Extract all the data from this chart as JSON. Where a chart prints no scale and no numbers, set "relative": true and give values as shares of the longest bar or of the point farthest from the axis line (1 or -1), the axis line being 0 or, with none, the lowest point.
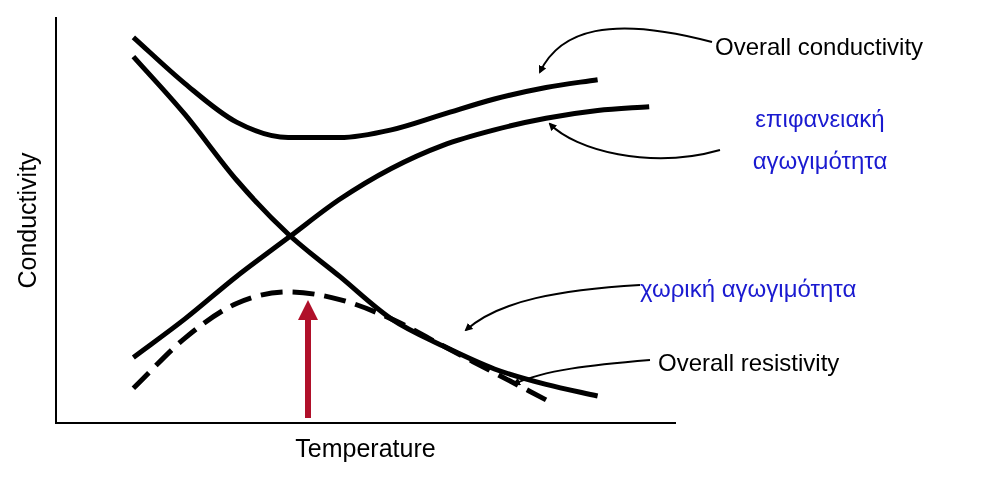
{
  "chart_data": {
    "type": "line",
    "relative": true,
    "xlabel": "Temperature",
    "ylabel": "Conductivity",
    "categories": [
      null,
      null,
      null,
      null,
      null,
      null,
      null,
      null,
      null,
      null,
      null,
      null
    ],
    "series": [
      {
        "name": "Overall conductivity",
        "color": "#000000",
        "line_style": "solid",
        "values": [
          null,
          1.0,
          0.88,
          0.78,
          0.74,
          0.74,
          0.76,
          0.8,
          0.84,
          0.87,
          0.89,
          null
        ]
      },
      {
        "name": "επιφανειακή αγωγιμότητα",
        "color": "#000000",
        "line_style": "solid",
        "values": [
          null,
          0.17,
          0.27,
          0.38,
          0.48,
          0.58,
          0.66,
          0.72,
          0.76,
          0.79,
          0.81,
          0.82
        ]
      },
      {
        "name": "χωρική αγωγιμότητα",
        "color": "#000000",
        "line_style": "solid",
        "values": [
          null,
          0.95,
          0.8,
          0.63,
          0.49,
          0.38,
          0.27,
          0.2,
          0.14,
          0.1,
          0.07,
          null
        ]
      },
      {
        "name": "Overall resistivity",
        "color": "#000000",
        "line_style": "dashed",
        "values": [
          null,
          0.09,
          0.22,
          0.31,
          0.34,
          0.32,
          0.27,
          0.2,
          0.13,
          0.06,
          null,
          null
        ]
      }
    ]
  }
}
